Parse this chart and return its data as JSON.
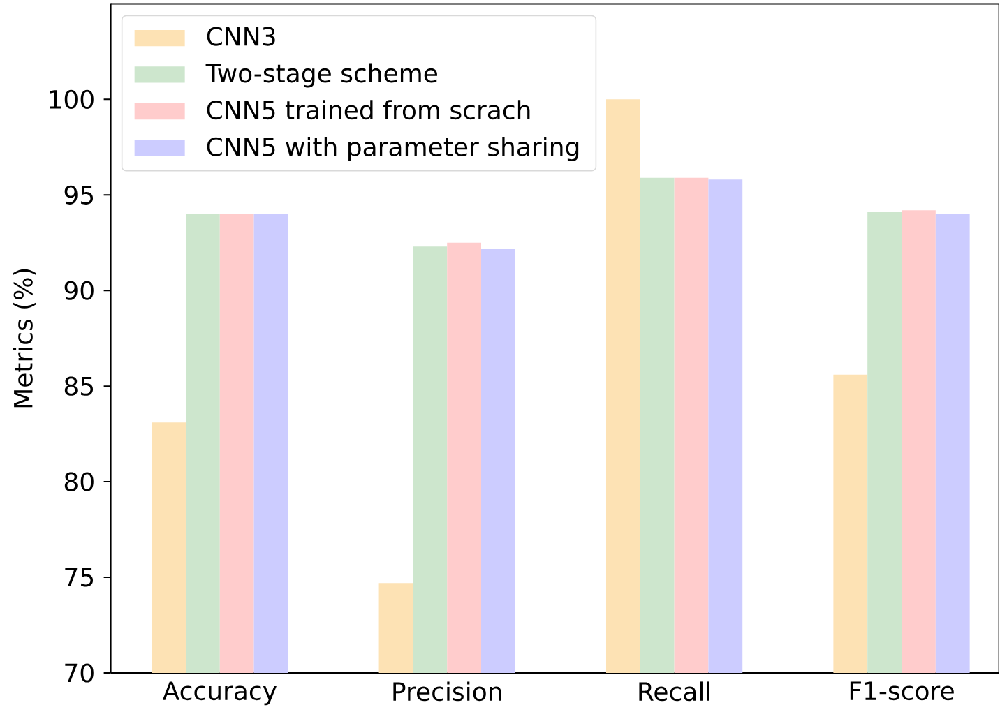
{
  "chart_data": {
    "type": "bar",
    "ylabel": "Metrics (%)",
    "categories": [
      "Accuracy",
      "Precision",
      "Recall",
      "F1-score"
    ],
    "series": [
      {
        "name": "CNN3",
        "color": "#fde2b4",
        "values": [
          83.1,
          74.7,
          100.0,
          85.6
        ]
      },
      {
        "name": "Two-stage scheme",
        "color": "#cde6cd",
        "values": [
          94.0,
          92.3,
          95.9,
          94.1
        ]
      },
      {
        "name": "CNN5 trained from scrach",
        "color": "#ffcccc",
        "values": [
          94.0,
          92.5,
          95.9,
          94.2
        ]
      },
      {
        "name": "CNN5 with parameter sharing",
        "color": "#ccccff",
        "values": [
          94.0,
          92.2,
          95.8,
          94.0
        ]
      }
    ],
    "ylim": [
      70,
      105
    ],
    "yticks": [
      70,
      75,
      80,
      85,
      90,
      95,
      100
    ],
    "legend": "top left"
  }
}
